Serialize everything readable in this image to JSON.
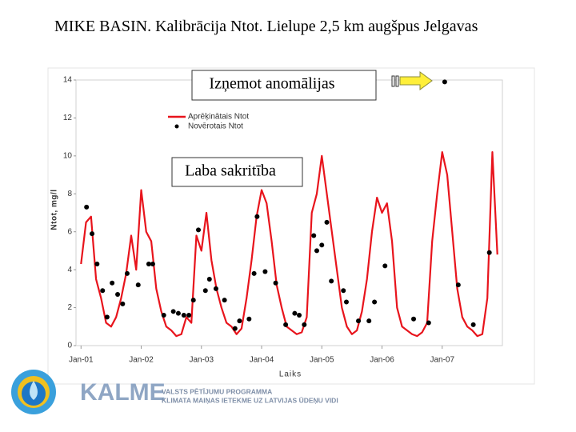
{
  "chart_data": {
    "type": "line",
    "title": "MIKE BASIN. Kalibrācija Ntot. Lielupe 2,5 km augšpus Jelgavas",
    "xlabel": "Laiks",
    "ylabel": "Ntot, mg/l",
    "xlim": [
      -1,
      84
    ],
    "xticks": [
      {
        "value": 0,
        "label": "Jan-01"
      },
      {
        "value": 12,
        "label": "Jan-02"
      },
      {
        "value": 24,
        "label": "Jan-03"
      },
      {
        "value": 36,
        "label": "Jan-04"
      },
      {
        "value": 48,
        "label": "Jan-05"
      },
      {
        "value": 60,
        "label": "Jan-06"
      },
      {
        "value": 72,
        "label": "Jan-07"
      }
    ],
    "ylim": [
      0,
      14
    ],
    "yticks": [
      0,
      2,
      4,
      6,
      8,
      10,
      12,
      14
    ],
    "series": [
      {
        "name": "Aprēķinātais Ntot",
        "color": "#e8141c",
        "type": "line",
        "x": [
          0,
          1,
          2,
          3,
          4,
          5,
          6,
          7,
          8,
          9,
          10,
          11,
          12,
          13,
          14,
          15,
          16,
          17,
          18,
          19,
          20,
          21,
          22,
          23,
          24,
          25,
          26,
          27,
          28,
          29,
          30,
          31,
          32,
          33,
          34,
          35,
          36,
          37,
          38,
          39,
          40,
          41,
          42,
          43,
          44,
          45,
          46,
          47,
          48,
          49,
          50,
          51,
          52,
          53,
          54,
          55,
          56,
          57,
          58,
          59,
          60,
          61,
          62,
          63,
          64,
          65,
          66,
          67,
          68,
          69,
          70,
          71,
          72,
          73,
          74,
          75,
          76,
          77,
          78,
          79,
          80,
          81,
          82,
          83
        ],
        "values": [
          4.3,
          6.5,
          6.8,
          3.5,
          2.5,
          1.2,
          1.0,
          1.5,
          2.5,
          3.8,
          5.8,
          4.0,
          8.2,
          6.0,
          5.5,
          3.0,
          1.8,
          1.0,
          0.8,
          0.5,
          0.6,
          1.5,
          1.2,
          5.8,
          5.0,
          7.0,
          4.5,
          3.0,
          2.0,
          1.2,
          1.0,
          0.6,
          0.9,
          2.5,
          4.5,
          6.8,
          8.2,
          7.5,
          5.5,
          3.2,
          2.0,
          1.0,
          0.8,
          0.6,
          0.7,
          1.5,
          7.0,
          8.0,
          10.0,
          8.0,
          6.0,
          4.0,
          2.0,
          1.0,
          0.6,
          0.8,
          1.8,
          3.5,
          6.0,
          7.8,
          7.0,
          7.5,
          5.5,
          2.0,
          1.0,
          0.8,
          0.6,
          0.5,
          0.7,
          1.2,
          5.5,
          8.0,
          10.2,
          9.0,
          6.0,
          3.0,
          1.5,
          1.0,
          0.8,
          0.5,
          0.6,
          2.5,
          10.2,
          4.8
        ]
      },
      {
        "name": "Novērotais Ntot",
        "color": "#000000",
        "type": "scatter",
        "x": [
          1.1,
          2.2,
          3.2,
          4.3,
          5.2,
          6.2,
          7.3,
          8.3,
          9.2,
          11.4,
          13.5,
          14.3,
          16.5,
          18.4,
          19.4,
          20.5,
          21.5,
          22.4,
          23.4,
          24.8,
          25.6,
          26.9,
          28.6,
          30.7,
          31.6,
          33.5,
          34.5,
          35.1,
          36.7,
          38.8,
          40.8,
          42.6,
          43.5,
          44.5,
          46.4,
          47.0,
          48.0,
          49.0,
          49.9,
          52.3,
          52.9,
          55.3,
          57.4,
          58.5,
          60.6,
          66.3,
          69.3,
          72.5,
          75.2,
          78.2,
          81.4
        ],
        "values": [
          7.3,
          5.9,
          4.3,
          2.9,
          1.5,
          3.3,
          2.7,
          2.2,
          3.8,
          3.2,
          4.3,
          4.3,
          1.6,
          1.8,
          1.7,
          1.6,
          1.6,
          2.4,
          6.1,
          2.9,
          3.5,
          3.0,
          2.4,
          0.9,
          1.3,
          1.4,
          3.8,
          6.8,
          3.9,
          3.3,
          1.1,
          1.7,
          1.6,
          1.1,
          5.8,
          5.0,
          5.3,
          6.5,
          3.4,
          2.9,
          2.3,
          1.3,
          1.3,
          2.3,
          4.2,
          1.4,
          1.2,
          13.9,
          3.2,
          1.1,
          4.9
        ]
      }
    ],
    "annotations": [
      "Izņemot anomālijas",
      "Laba sakritība"
    ]
  },
  "footer": {
    "logo": "KALME",
    "program": "VALSTS PĒTĪJUMU PROGRAMMA",
    "subtitle": "KLIMATA MAIŅAS IETEKME UZ LATVIJAS ŪDEŅU VIDI"
  }
}
